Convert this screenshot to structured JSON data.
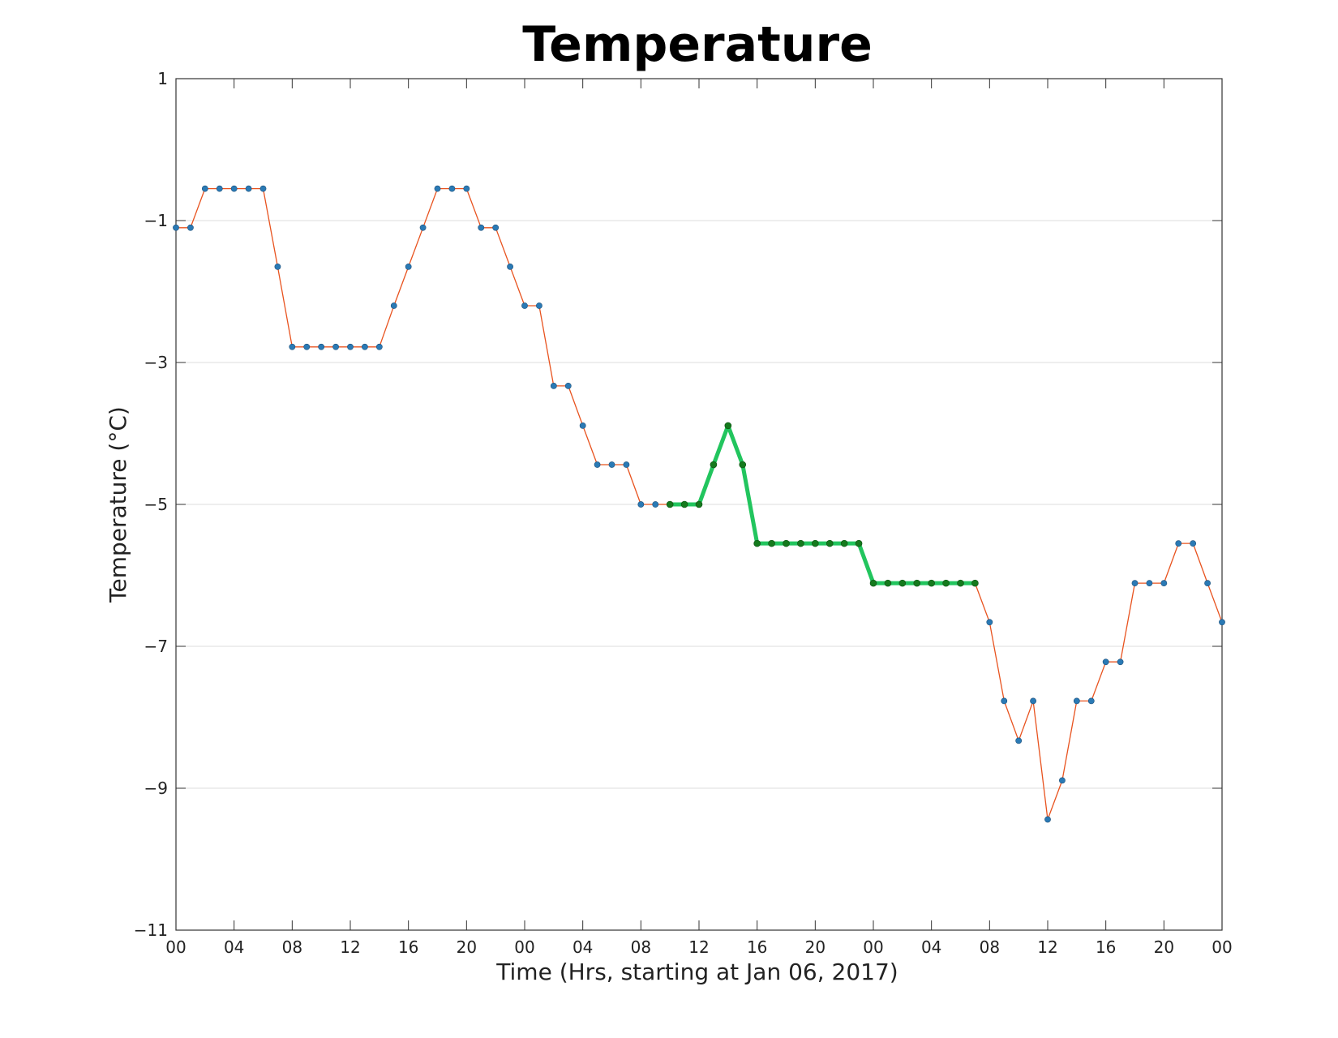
{
  "chart_data": {
    "type": "line",
    "title": "Temperature",
    "xlabel": "Time (Hrs, starting at Jan 06, 2017)",
    "ylabel": "Temperature (°C)",
    "xlim": [
      0,
      72
    ],
    "ylim": [
      -11,
      1
    ],
    "xticks": [
      0,
      4,
      8,
      12,
      16,
      20,
      24,
      28,
      32,
      36,
      40,
      44,
      48,
      52,
      56,
      60,
      64,
      68,
      72
    ],
    "xtick_labels": [
      "00",
      "04",
      "08",
      "12",
      "16",
      "20",
      "00",
      "04",
      "08",
      "12",
      "16",
      "20",
      "00",
      "04",
      "08",
      "12",
      "16",
      "20",
      "00"
    ],
    "yticks": [
      1,
      -1,
      -3,
      -5,
      -7,
      -9,
      -11
    ],
    "ytick_labels": [
      "1",
      "−1",
      "−3",
      "−5",
      "−7",
      "−9",
      "−11"
    ],
    "grid": "horizontal",
    "colors": {
      "line": "#e8531f",
      "marker": "#2a7ab5",
      "highlight_line": "#22c55e",
      "highlight_marker": "#157a1d",
      "grid": "#dddddd",
      "axes": "#333333"
    },
    "series": [
      {
        "x": [
          0,
          1,
          2,
          3,
          4,
          5,
          6,
          7,
          8,
          9,
          10,
          11,
          12,
          13,
          14,
          15,
          16,
          17,
          18,
          19,
          20,
          21,
          22,
          23,
          24,
          25,
          26,
          27,
          28,
          29,
          30,
          31,
          32,
          33,
          34,
          35,
          36,
          37,
          38,
          39,
          40,
          41,
          42,
          43,
          44,
          45,
          46,
          47,
          48,
          49,
          50,
          51,
          52,
          53,
          54,
          55,
          56,
          57,
          58,
          59,
          60,
          61,
          62,
          63,
          64,
          65,
          66,
          67,
          68,
          69,
          70,
          71,
          72
        ],
        "y": [
          -1.1,
          -1.1,
          -0.55,
          -0.55,
          -0.55,
          -0.55,
          -0.55,
          -1.65,
          -2.78,
          -2.78,
          -2.78,
          -2.78,
          -2.78,
          -2.78,
          -2.78,
          -2.2,
          -1.65,
          -1.1,
          -0.55,
          -0.55,
          -0.55,
          -1.1,
          -1.1,
          -1.65,
          -2.2,
          -2.2,
          -3.33,
          -3.33,
          -3.89,
          -4.44,
          -4.44,
          -4.44,
          -5.0,
          -5.0,
          -5.0,
          -5.0,
          -5.0,
          -4.44,
          -3.89,
          -4.44,
          -5.55,
          -5.55,
          -5.55,
          -5.55,
          -5.55,
          -5.55,
          -5.55,
          -5.55,
          -6.11,
          -6.11,
          -6.11,
          -6.11,
          -6.11,
          -6.11,
          -6.11,
          -6.11,
          -6.66,
          -7.77,
          -8.33,
          -7.77,
          -9.44,
          -8.89,
          -7.77,
          -7.77,
          -7.22,
          -7.22,
          -6.11,
          -6.11,
          -6.11,
          -5.55,
          -5.55,
          -6.11,
          -6.66
        ]
      }
    ],
    "highlight": {
      "x": [
        34,
        35,
        36,
        37,
        38,
        39,
        40,
        41,
        42,
        43,
        44,
        45,
        46,
        47,
        48,
        49,
        50,
        51,
        52,
        53,
        54,
        55
      ],
      "y": [
        -5.0,
        -5.0,
        -5.0,
        -4.44,
        -3.89,
        -4.44,
        -5.55,
        -5.55,
        -5.55,
        -5.55,
        -5.55,
        -5.55,
        -5.55,
        -5.55,
        -6.11,
        -6.11,
        -6.11,
        -6.11,
        -6.11,
        -6.11,
        -6.11,
        -6.11
      ]
    }
  }
}
